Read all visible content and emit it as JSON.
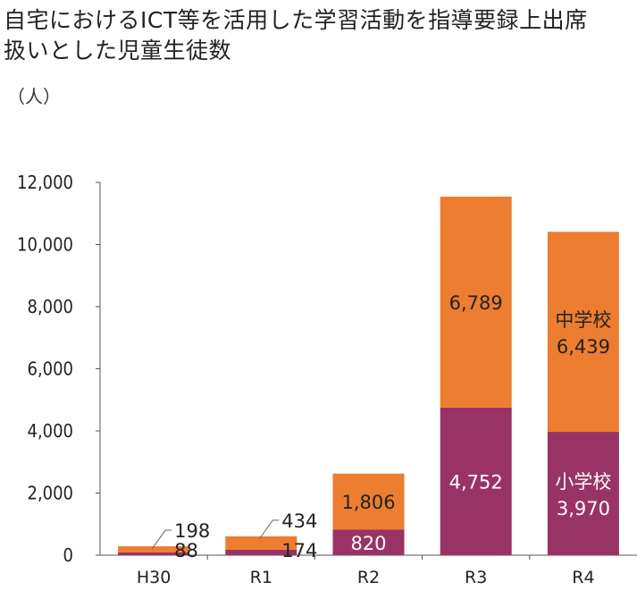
{
  "chart_data": {
    "type": "bar",
    "stacked": true,
    "title_lines": [
      "自宅におけるICT等を活用した学習活動を指導要録上出席",
      "扱いとした児童生徒数"
    ],
    "unit": "（人）",
    "categories": [
      "H30",
      "R1",
      "R2",
      "R3",
      "R4"
    ],
    "series": [
      {
        "name": "小学校",
        "color": "#993366",
        "values": [
          88,
          174,
          820,
          4752,
          3970
        ],
        "labels": [
          "88",
          "174",
          "820",
          "4,752",
          "3,970"
        ]
      },
      {
        "name": "中学校",
        "color": "#ED7D31",
        "values": [
          198,
          434,
          1806,
          6789,
          6439
        ],
        "labels": [
          "198",
          "434",
          "1,806",
          "6,789",
          "6,439"
        ]
      }
    ],
    "yticks": [
      "0",
      "2,000",
      "4,000",
      "6,000",
      "8,000",
      "10,000",
      "12,000"
    ],
    "ylim": [
      0,
      12000
    ],
    "grid": false
  }
}
